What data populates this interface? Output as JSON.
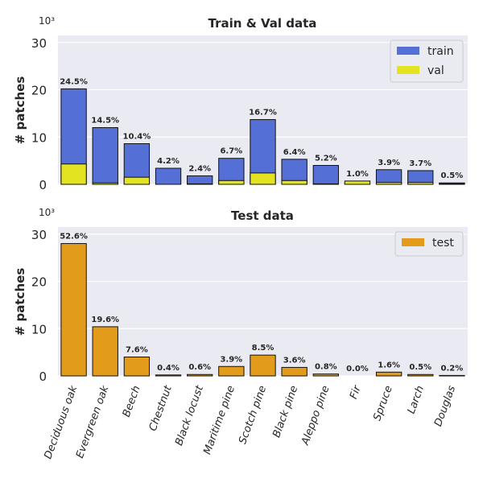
{
  "chart_data": [
    {
      "type": "bar",
      "title": "Train & Val data",
      "ylabel": "# patches",
      "y_multiplier": "10³",
      "ylim": [
        0,
        31.5
      ],
      "yticks": [
        0,
        10,
        20,
        30
      ],
      "categories": [
        "Deciduous oak",
        "Evergreen oak",
        "Beech",
        "Chestnut",
        "Black locust",
        "Maritime pine",
        "Scotch pine",
        "Black pine",
        "Aleppo pine",
        "Fir",
        "Spruce",
        "Larch",
        "Douglas"
      ],
      "series": [
        {
          "name": "train",
          "color": "#5470d6",
          "values": [
            20.2,
            12.0,
            8.6,
            3.4,
            1.8,
            5.5,
            13.7,
            5.3,
            4.0,
            0.1,
            3.1,
            2.9,
            0.3
          ]
        },
        {
          "name": "val",
          "color": "#e3e322",
          "values": [
            4.3,
            0.3,
            1.5,
            0.0,
            0.1,
            0.8,
            2.4,
            0.8,
            0.1,
            0.7,
            0.4,
            0.4,
            0.1
          ]
        }
      ],
      "data_labels": [
        "24.5%",
        "14.5%",
        "10.4%",
        "4.2%",
        "2.4%",
        "6.7%",
        "16.7%",
        "6.4%",
        "5.2%",
        "1.0%",
        "3.9%",
        "3.7%",
        "0.5%"
      ],
      "legend": "top-right"
    },
    {
      "type": "bar",
      "title": "Test data",
      "ylabel": "# patches",
      "y_multiplier": "10³",
      "ylim": [
        0,
        31.5
      ],
      "yticks": [
        0,
        10,
        20,
        30
      ],
      "categories": [
        "Deciduous oak",
        "Evergreen oak",
        "Beech",
        "Chestnut",
        "Black locust",
        "Maritime pine",
        "Scotch pine",
        "Black pine",
        "Aleppo pine",
        "Fir",
        "Spruce",
        "Larch",
        "Douglas"
      ],
      "series": [
        {
          "name": "test",
          "color": "#e39b1c",
          "values": [
            28.0,
            10.4,
            4.0,
            0.2,
            0.3,
            2.0,
            4.4,
            1.8,
            0.4,
            0.0,
            0.8,
            0.3,
            0.1
          ]
        }
      ],
      "data_labels": [
        "52.6%",
        "19.6%",
        "7.6%",
        "0.4%",
        "0.6%",
        "3.9%",
        "8.5%",
        "3.6%",
        "0.8%",
        "0.0%",
        "1.6%",
        "0.5%",
        "0.2%"
      ],
      "legend": "top-right"
    }
  ]
}
